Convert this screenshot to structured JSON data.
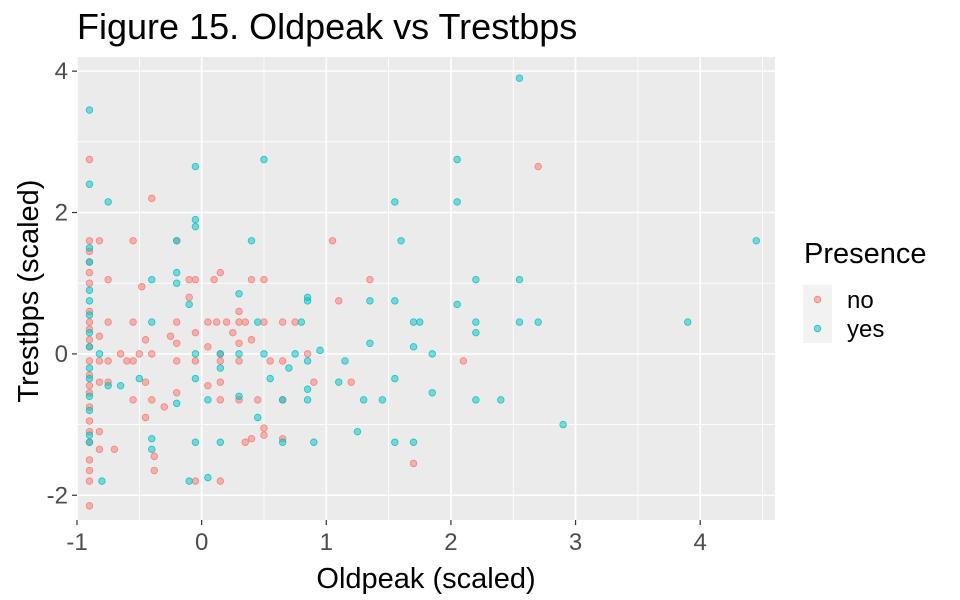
{
  "chart_data": {
    "type": "scatter",
    "title": "Figure 15. Oldpeak vs Trestbps",
    "xlabel": "Oldpeak (scaled)",
    "ylabel": "Trestbps (scaled)",
    "xlim": [
      -1.0,
      4.6
    ],
    "ylim": [
      -2.35,
      4.2
    ],
    "x_ticks": [
      -1,
      0,
      1,
      2,
      3,
      4
    ],
    "y_ticks": [
      -2,
      0,
      2,
      4
    ],
    "grid": true,
    "panel_background": "#ebebeb",
    "legend": {
      "title": "Presence",
      "position": "right"
    },
    "series": [
      {
        "name": "no",
        "color": "#F8766D",
        "points": [
          [
            -0.9,
            2.75
          ],
          [
            -0.9,
            1.6
          ],
          [
            -0.9,
            1.45
          ],
          [
            -0.9,
            1.3
          ],
          [
            -0.9,
            1.15
          ],
          [
            -0.9,
            1.0
          ],
          [
            -0.9,
            0.6
          ],
          [
            -0.9,
            0.45
          ],
          [
            -0.9,
            0.35
          ],
          [
            -0.9,
            0.2
          ],
          [
            -0.9,
            0.1
          ],
          [
            -0.9,
            -0.1
          ],
          [
            -0.9,
            -0.3
          ],
          [
            -0.9,
            -0.45
          ],
          [
            -0.9,
            -0.55
          ],
          [
            -0.9,
            -0.75
          ],
          [
            -0.9,
            -0.95
          ],
          [
            -0.9,
            -1.1
          ],
          [
            -0.9,
            -1.25
          ],
          [
            -0.9,
            -1.5
          ],
          [
            -0.9,
            -1.65
          ],
          [
            -0.9,
            -1.8
          ],
          [
            -0.9,
            -2.15
          ],
          [
            -0.82,
            1.6
          ],
          [
            -0.82,
            0.25
          ],
          [
            -0.82,
            -0.1
          ],
          [
            -0.82,
            -0.4
          ],
          [
            -0.82,
            -1.1
          ],
          [
            -0.82,
            -1.35
          ],
          [
            -0.75,
            1.05
          ],
          [
            -0.75,
            0.45
          ],
          [
            -0.75,
            -0.1
          ],
          [
            -0.75,
            -0.4
          ],
          [
            -0.7,
            -1.35
          ],
          [
            -0.65,
            0.0
          ],
          [
            -0.6,
            -0.1
          ],
          [
            -0.55,
            1.6
          ],
          [
            -0.55,
            0.45
          ],
          [
            -0.55,
            -0.1
          ],
          [
            -0.55,
            -0.65
          ],
          [
            -0.5,
            0.0
          ],
          [
            -0.48,
            0.95
          ],
          [
            -0.45,
            0.2
          ],
          [
            -0.45,
            -0.4
          ],
          [
            -0.45,
            -0.9
          ],
          [
            -0.4,
            2.2
          ],
          [
            -0.4,
            0.0
          ],
          [
            -0.4,
            -0.65
          ],
          [
            -0.38,
            -1.45
          ],
          [
            -0.38,
            -1.65
          ],
          [
            -0.3,
            -0.75
          ],
          [
            -0.25,
            0.25
          ],
          [
            -0.2,
            1.6
          ],
          [
            -0.2,
            0.45
          ],
          [
            -0.2,
            0.15
          ],
          [
            -0.2,
            -0.1
          ],
          [
            -0.2,
            -0.55
          ],
          [
            -0.1,
            1.05
          ],
          [
            -0.1,
            0.8
          ],
          [
            -0.05,
            1.05
          ],
          [
            -0.05,
            0.3
          ],
          [
            -0.05,
            -0.1
          ],
          [
            -0.05,
            -1.8
          ],
          [
            0.05,
            0.45
          ],
          [
            0.05,
            0.1
          ],
          [
            0.05,
            -0.45
          ],
          [
            0.1,
            1.05
          ],
          [
            0.12,
            0.45
          ],
          [
            0.15,
            1.15
          ],
          [
            0.15,
            0.0
          ],
          [
            0.15,
            -0.1
          ],
          [
            0.15,
            -0.4
          ],
          [
            0.15,
            -0.65
          ],
          [
            0.15,
            -1.8
          ],
          [
            0.2,
            0.45
          ],
          [
            0.25,
            0.3
          ],
          [
            0.3,
            0.6
          ],
          [
            0.3,
            0.45
          ],
          [
            0.3,
            0.15
          ],
          [
            0.3,
            -0.1
          ],
          [
            0.3,
            -0.65
          ],
          [
            0.35,
            0.45
          ],
          [
            0.35,
            -1.25
          ],
          [
            0.4,
            0.2
          ],
          [
            0.4,
            1.05
          ],
          [
            0.4,
            -1.2
          ],
          [
            0.45,
            -0.65
          ],
          [
            0.5,
            1.05
          ],
          [
            0.5,
            0.45
          ],
          [
            0.5,
            -1.05
          ],
          [
            0.5,
            -1.15
          ],
          [
            0.55,
            -0.1
          ],
          [
            0.65,
            0.45
          ],
          [
            0.65,
            -0.1
          ],
          [
            0.65,
            -0.65
          ],
          [
            0.65,
            -1.2
          ],
          [
            0.75,
            0.45
          ],
          [
            0.85,
            0.0
          ],
          [
            0.9,
            -0.4
          ],
          [
            1.05,
            1.6
          ],
          [
            1.1,
            0.75
          ],
          [
            1.2,
            -0.4
          ],
          [
            1.35,
            1.05
          ],
          [
            1.7,
            -1.55
          ],
          [
            2.1,
            -0.1
          ],
          [
            2.7,
            2.65
          ]
        ]
      },
      {
        "name": "yes",
        "color": "#00BFC4",
        "points": [
          [
            -0.9,
            3.45
          ],
          [
            -0.9,
            2.4
          ],
          [
            -0.9,
            1.5
          ],
          [
            -0.9,
            1.3
          ],
          [
            -0.9,
            0.9
          ],
          [
            -0.9,
            0.75
          ],
          [
            -0.9,
            0.55
          ],
          [
            -0.9,
            0.3
          ],
          [
            -0.9,
            0.1
          ],
          [
            -0.9,
            -0.2
          ],
          [
            -0.9,
            -0.35
          ],
          [
            -0.9,
            -0.6
          ],
          [
            -0.9,
            -0.8
          ],
          [
            -0.9,
            -1.15
          ],
          [
            -0.9,
            -1.25
          ],
          [
            -0.82,
            0.0
          ],
          [
            -0.8,
            -1.8
          ],
          [
            -0.75,
            2.15
          ],
          [
            -0.75,
            -0.45
          ],
          [
            -0.65,
            -0.45
          ],
          [
            -0.5,
            -0.35
          ],
          [
            -0.4,
            1.05
          ],
          [
            -0.4,
            0.45
          ],
          [
            -0.4,
            -1.2
          ],
          [
            -0.4,
            -1.35
          ],
          [
            -0.2,
            1.6
          ],
          [
            -0.2,
            1.15
          ],
          [
            -0.2,
            1.0
          ],
          [
            -0.2,
            -0.7
          ],
          [
            -0.1,
            0.7
          ],
          [
            -0.1,
            -1.8
          ],
          [
            -0.05,
            2.65
          ],
          [
            -0.05,
            1.9
          ],
          [
            -0.05,
            1.8
          ],
          [
            -0.05,
            0.0
          ],
          [
            -0.05,
            -0.35
          ],
          [
            -0.05,
            -1.25
          ],
          [
            0.05,
            -0.65
          ],
          [
            0.05,
            -1.75
          ],
          [
            0.15,
            0.0
          ],
          [
            0.15,
            -0.2
          ],
          [
            0.15,
            -1.25
          ],
          [
            0.3,
            0.85
          ],
          [
            0.3,
            0.0
          ],
          [
            0.3,
            -0.6
          ],
          [
            0.4,
            1.6
          ],
          [
            0.45,
            0.45
          ],
          [
            0.45,
            -0.9
          ],
          [
            0.5,
            2.75
          ],
          [
            0.5,
            0.0
          ],
          [
            0.55,
            -0.35
          ],
          [
            0.65,
            -0.65
          ],
          [
            0.65,
            -1.25
          ],
          [
            0.7,
            -0.2
          ],
          [
            0.75,
            0.0
          ],
          [
            0.8,
            0.45
          ],
          [
            0.85,
            0.8
          ],
          [
            0.85,
            0.75
          ],
          [
            0.85,
            -0.1
          ],
          [
            0.85,
            -0.5
          ],
          [
            0.85,
            -0.65
          ],
          [
            0.9,
            -1.25
          ],
          [
            0.95,
            0.05
          ],
          [
            1.1,
            -0.4
          ],
          [
            1.15,
            -0.1
          ],
          [
            1.25,
            -1.1
          ],
          [
            1.3,
            -0.65
          ],
          [
            1.35,
            0.75
          ],
          [
            1.35,
            0.15
          ],
          [
            1.45,
            -0.65
          ],
          [
            1.55,
            2.15
          ],
          [
            1.55,
            0.75
          ],
          [
            1.55,
            -0.35
          ],
          [
            1.55,
            -1.25
          ],
          [
            1.6,
            1.6
          ],
          [
            1.7,
            0.45
          ],
          [
            1.7,
            0.1
          ],
          [
            1.7,
            -1.25
          ],
          [
            1.75,
            0.45
          ],
          [
            1.85,
            0.0
          ],
          [
            1.85,
            -0.55
          ],
          [
            2.05,
            2.75
          ],
          [
            2.05,
            2.15
          ],
          [
            2.05,
            0.7
          ],
          [
            2.2,
            1.05
          ],
          [
            2.2,
            0.45
          ],
          [
            2.2,
            0.3
          ],
          [
            2.2,
            -0.65
          ],
          [
            2.4,
            -0.65
          ],
          [
            2.55,
            3.9
          ],
          [
            2.55,
            1.05
          ],
          [
            2.55,
            0.45
          ],
          [
            2.7,
            0.45
          ],
          [
            2.9,
            -1.0
          ],
          [
            3.9,
            0.45
          ],
          [
            4.45,
            1.6
          ]
        ]
      }
    ]
  }
}
